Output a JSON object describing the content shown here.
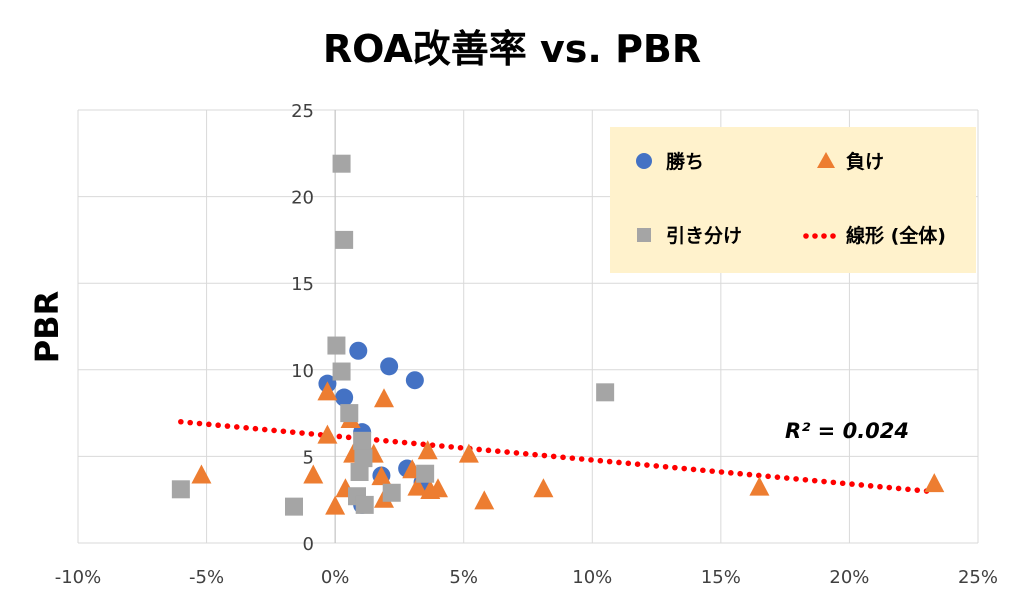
{
  "chart_data": {
    "type": "scatter",
    "title": "ROA改善率 vs. PBR",
    "xlabel": "",
    "ylabel": "PBR",
    "xlim": [
      -10,
      25
    ],
    "ylim": [
      0,
      25
    ],
    "x_ticks": [
      "-10%",
      "-5%",
      "0%",
      "5%",
      "10%",
      "15%",
      "20%",
      "25%"
    ],
    "y_ticks": [
      "0",
      "5",
      "10",
      "15",
      "20",
      "25"
    ],
    "grid": true,
    "legend_position": "top-right",
    "colors": {
      "win": "#4472c4",
      "lose": "#ed7d31",
      "draw": "#a5a5a5",
      "trend": "#ff0000",
      "legend_bg": "#fff2cc"
    },
    "series": [
      {
        "name": "勝ち",
        "marker": "circle",
        "points": [
          [
            0.9,
            11.1
          ],
          [
            2.1,
            10.2
          ],
          [
            3.1,
            9.4
          ],
          [
            -0.3,
            9.2
          ],
          [
            0.35,
            8.4
          ],
          [
            1.05,
            6.4
          ],
          [
            1.8,
            3.9
          ],
          [
            2.8,
            4.3
          ],
          [
            3.4,
            3.5
          ],
          [
            1.05,
            2.2
          ]
        ]
      },
      {
        "name": "負け",
        "marker": "triangle",
        "points": [
          [
            -5.2,
            3.9
          ],
          [
            -0.85,
            3.9
          ],
          [
            -0.3,
            8.7
          ],
          [
            1.9,
            8.3
          ],
          [
            -0.3,
            6.2
          ],
          [
            0.6,
            7.1
          ],
          [
            0.7,
            5.1
          ],
          [
            1.5,
            5.1
          ],
          [
            0.4,
            3.1
          ],
          [
            0.0,
            2.1
          ],
          [
            1.8,
            3.8
          ],
          [
            1.9,
            2.5
          ],
          [
            3.2,
            3.2
          ],
          [
            3.6,
            5.3
          ],
          [
            3.7,
            3.0
          ],
          [
            4.0,
            3.1
          ],
          [
            5.2,
            5.1
          ],
          [
            5.8,
            2.4
          ],
          [
            8.1,
            3.1
          ],
          [
            16.5,
            3.2
          ],
          [
            23.3,
            3.4
          ],
          [
            3.0,
            4.2
          ]
        ]
      },
      {
        "name": "引き分け",
        "marker": "square",
        "points": [
          [
            0.25,
            21.9
          ],
          [
            0.35,
            17.5
          ],
          [
            0.05,
            11.4
          ],
          [
            0.25,
            9.9
          ],
          [
            0.55,
            7.5
          ],
          [
            1.05,
            5.9
          ],
          [
            1.1,
            4.9
          ],
          [
            0.95,
            4.1
          ],
          [
            0.85,
            2.7
          ],
          [
            1.15,
            2.2
          ],
          [
            2.2,
            2.9
          ],
          [
            3.5,
            4.0
          ],
          [
            10.5,
            8.7
          ],
          [
            -6.0,
            3.1
          ],
          [
            -1.6,
            2.1
          ]
        ]
      }
    ],
    "trendline": {
      "name": "線形 (全体)",
      "x_range": [
        -6,
        23
      ],
      "y_start": 7.0,
      "y_end": 3.0,
      "r2_label": "R² = 0.024"
    }
  }
}
